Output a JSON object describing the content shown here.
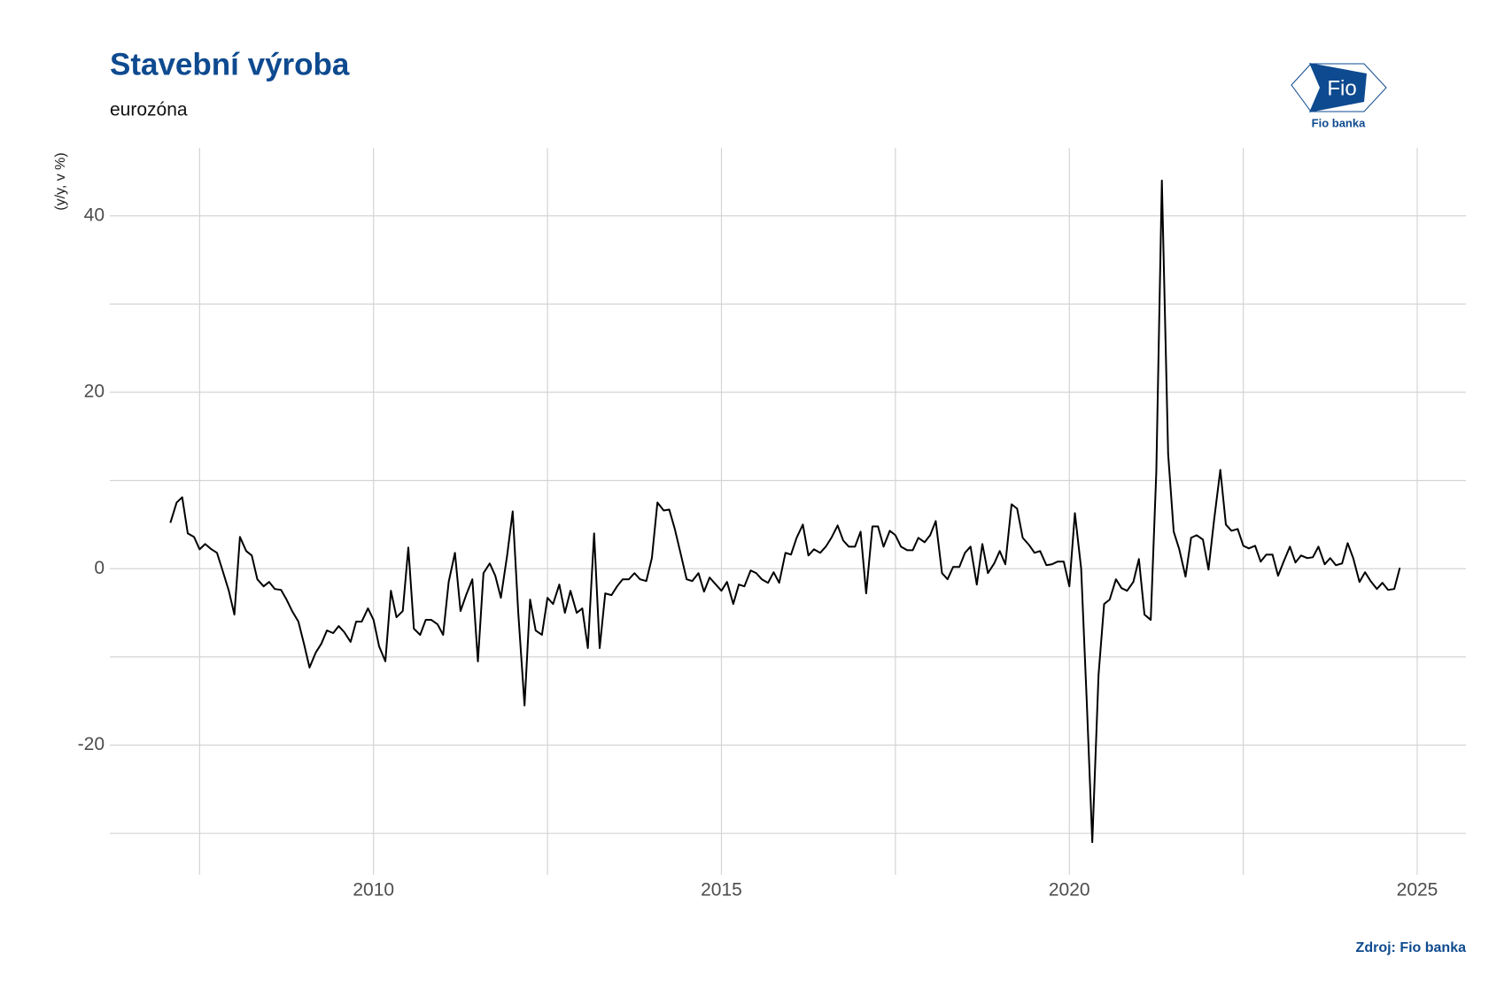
{
  "chart_data": {
    "type": "line",
    "title": "Stavební výroba",
    "subtitle": "eurozóna",
    "y_label": "(y/y, v %)",
    "source": "Zdroj: Fio banka",
    "logo_text": "Fio",
    "logo_caption": "Fio banka",
    "xlim": [
      2006.21,
      2025.7
    ],
    "ylim": [
      -34.7,
      47.7
    ],
    "xticks": [
      2010,
      2015,
      2020,
      2025
    ],
    "yticks": [
      -20,
      0,
      20,
      40
    ],
    "x_minor_ticks": [
      2007.5,
      2012.5,
      2017.5,
      2022.5
    ],
    "y_minor_ticks": [
      -30,
      -10,
      10,
      30
    ],
    "grid": true,
    "series": [
      {
        "color": "#000000",
        "x": [
          2007.08,
          2007.17,
          2007.25,
          2007.33,
          2007.42,
          2007.5,
          2007.58,
          2007.67,
          2007.75,
          2007.83,
          2007.92,
          2008.0,
          2008.08,
          2008.17,
          2008.25,
          2008.33,
          2008.42,
          2008.5,
          2008.58,
          2008.67,
          2008.75,
          2008.83,
          2008.92,
          2009.0,
          2009.08,
          2009.17,
          2009.25,
          2009.33,
          2009.42,
          2009.5,
          2009.58,
          2009.67,
          2009.75,
          2009.83,
          2009.92,
          2010.0,
          2010.08,
          2010.17,
          2010.25,
          2010.33,
          2010.42,
          2010.5,
          2010.58,
          2010.67,
          2010.75,
          2010.83,
          2010.92,
          2011.0,
          2011.08,
          2011.17,
          2011.25,
          2011.33,
          2011.42,
          2011.5,
          2011.58,
          2011.67,
          2011.75,
          2011.83,
          2011.92,
          2012.0,
          2012.08,
          2012.17,
          2012.25,
          2012.33,
          2012.42,
          2012.5,
          2012.58,
          2012.67,
          2012.75,
          2012.83,
          2012.92,
          2013.0,
          2013.08,
          2013.17,
          2013.25,
          2013.33,
          2013.42,
          2013.5,
          2013.58,
          2013.67,
          2013.75,
          2013.83,
          2013.92,
          2014.0,
          2014.08,
          2014.17,
          2014.25,
          2014.33,
          2014.42,
          2014.5,
          2014.58,
          2014.67,
          2014.75,
          2014.83,
          2014.92,
          2015.0,
          2015.08,
          2015.17,
          2015.25,
          2015.33,
          2015.42,
          2015.5,
          2015.58,
          2015.67,
          2015.75,
          2015.83,
          2015.92,
          2016.0,
          2016.08,
          2016.17,
          2016.25,
          2016.33,
          2016.42,
          2016.5,
          2016.58,
          2016.67,
          2016.75,
          2016.83,
          2016.92,
          2017.0,
          2017.08,
          2017.17,
          2017.25,
          2017.33,
          2017.42,
          2017.5,
          2017.58,
          2017.67,
          2017.75,
          2017.83,
          2017.92,
          2018.0,
          2018.08,
          2018.17,
          2018.25,
          2018.33,
          2018.42,
          2018.5,
          2018.58,
          2018.67,
          2018.75,
          2018.83,
          2018.92,
          2019.0,
          2019.08,
          2019.17,
          2019.25,
          2019.33,
          2019.42,
          2019.5,
          2019.58,
          2019.67,
          2019.75,
          2019.83,
          2019.92,
          2020.0,
          2020.08,
          2020.17,
          2020.25,
          2020.33,
          2020.42,
          2020.5,
          2020.58,
          2020.67,
          2020.75,
          2020.83,
          2020.92,
          2021.0,
          2021.08,
          2021.17,
          2021.25,
          2021.33,
          2021.42,
          2021.5,
          2021.58,
          2021.67,
          2021.75,
          2021.83,
          2021.92,
          2022.0,
          2022.08,
          2022.17,
          2022.25,
          2022.33,
          2022.42,
          2022.5,
          2022.58,
          2022.67,
          2022.75,
          2022.83,
          2022.92,
          2023.0,
          2023.08,
          2023.17,
          2023.25,
          2023.33,
          2023.42,
          2023.5,
          2023.58,
          2023.67,
          2023.75,
          2023.83,
          2023.92,
          2024.0,
          2024.08,
          2024.17,
          2024.25,
          2024.33,
          2024.42,
          2024.5,
          2024.58,
          2024.67,
          2024.75
        ],
        "values": [
          5.2,
          7.5,
          8.1,
          4.0,
          3.6,
          2.2,
          2.8,
          2.2,
          1.8,
          -0.2,
          -2.5,
          -5.2,
          3.6,
          2.0,
          1.5,
          -1.2,
          -2.0,
          -1.5,
          -2.3,
          -2.4,
          -3.5,
          -4.8,
          -6.0,
          -8.5,
          -11.2,
          -9.5,
          -8.5,
          -7.0,
          -7.3,
          -6.5,
          -7.2,
          -8.3,
          -6.0,
          -6.0,
          -4.5,
          -5.8,
          -8.8,
          -10.5,
          -2.5,
          -5.5,
          -4.8,
          2.4,
          -6.8,
          -7.5,
          -5.8,
          -5.8,
          -6.3,
          -7.5,
          -1.5,
          1.8,
          -4.8,
          -3.0,
          -1.2,
          -10.5,
          -0.5,
          0.6,
          -0.8,
          -3.3,
          1.5,
          6.5,
          -5.0,
          -15.5,
          -3.5,
          -7.0,
          -7.5,
          -3.3,
          -4.0,
          -1.8,
          -5.0,
          -2.5,
          -5.0,
          -4.5,
          -9.0,
          4.0,
          -9.0,
          -2.8,
          -3.0,
          -2.0,
          -1.2,
          -1.2,
          -0.5,
          -1.2,
          -1.4,
          1.2,
          7.5,
          6.6,
          6.7,
          4.5,
          1.5,
          -1.2,
          -1.4,
          -0.5,
          -2.6,
          -1.0,
          -1.8,
          -2.5,
          -1.5,
          -4.0,
          -1.8,
          -2.0,
          -0.2,
          -0.5,
          -1.2,
          -1.6,
          -0.4,
          -1.6,
          1.8,
          1.6,
          3.5,
          5.0,
          1.5,
          2.2,
          1.8,
          2.5,
          3.5,
          4.9,
          3.2,
          2.5,
          2.5,
          4.2,
          -2.8,
          4.8,
          4.8,
          2.5,
          4.3,
          3.8,
          2.5,
          2.1,
          2.1,
          3.5,
          3.0,
          3.8,
          5.4,
          -0.5,
          -1.2,
          0.2,
          0.2,
          1.8,
          2.5,
          -1.8,
          2.8,
          -0.5,
          0.6,
          2.0,
          0.5,
          7.3,
          6.8,
          3.5,
          2.7,
          1.8,
          2.0,
          0.4,
          0.5,
          0.8,
          0.8,
          -2.0,
          6.3,
          0.0,
          -15.0,
          -31.0,
          -12.0,
          -4.0,
          -3.5,
          -1.2,
          -2.2,
          -2.5,
          -1.5,
          1.1,
          -5.2,
          -5.8,
          11.0,
          44.0,
          13.0,
          4.2,
          2.2,
          -0.9,
          3.5,
          3.8,
          3.3,
          -0.1,
          5.5,
          11.2,
          5.0,
          4.3,
          4.5,
          2.6,
          2.3,
          2.6,
          0.8,
          1.6,
          1.6,
          -0.8,
          0.8,
          2.5,
          0.7,
          1.5,
          1.2,
          1.3,
          2.5,
          0.5,
          1.2,
          0.4,
          0.6,
          2.9,
          1.2,
          -1.5,
          -0.4,
          -1.4,
          -2.3,
          -1.6,
          -2.4,
          -2.3,
          0.1
        ]
      }
    ]
  }
}
